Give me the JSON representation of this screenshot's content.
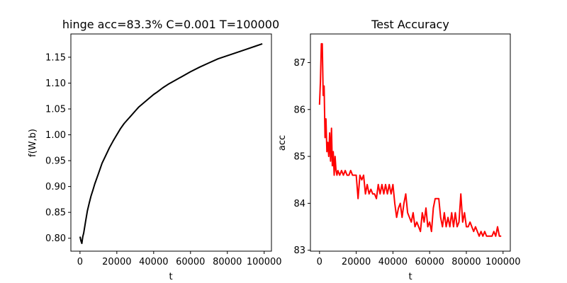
{
  "chart_data": [
    {
      "type": "line",
      "title": "hinge acc=83.3% C=0.001 T=100000",
      "xlabel": "t",
      "ylabel": "f(W,b)",
      "xlim": [
        -4950,
        103950
      ],
      "ylim": [
        0.775,
        1.195
      ],
      "xticks": [
        0,
        20000,
        40000,
        60000,
        80000,
        100000
      ],
      "xtick_labels": [
        "0",
        "20000",
        "40000",
        "60000",
        "80000",
        "100000"
      ],
      "yticks": [
        0.8,
        0.85,
        0.9,
        0.95,
        1.0,
        1.05,
        1.1,
        1.15
      ],
      "ytick_labels": [
        "0.80",
        "0.85",
        "0.90",
        "0.95",
        "1.00",
        "1.05",
        "1.10",
        "1.15"
      ],
      "grid": false,
      "series": [
        {
          "color": "#000000",
          "x": [
            0,
            500,
            1000,
            1500,
            2000,
            3000,
            4000,
            5000,
            6000,
            7000,
            8000,
            10000,
            12000,
            14000,
            16000,
            18000,
            20000,
            22000,
            24000,
            26000,
            28000,
            30000,
            32000,
            35000,
            38000,
            40000,
            42000,
            45000,
            48000,
            50000,
            55000,
            60000,
            65000,
            70000,
            75000,
            80000,
            85000,
            90000,
            95000,
            99000
          ],
          "y": [
            0.803,
            0.795,
            0.79,
            0.803,
            0.81,
            0.832,
            0.853,
            0.868,
            0.882,
            0.893,
            0.905,
            0.925,
            0.945,
            0.96,
            0.975,
            0.988,
            1.0,
            1.012,
            1.022,
            1.03,
            1.038,
            1.046,
            1.054,
            1.063,
            1.072,
            1.078,
            1.083,
            1.091,
            1.098,
            1.102,
            1.112,
            1.122,
            1.131,
            1.139,
            1.147,
            1.153,
            1.159,
            1.165,
            1.171,
            1.176
          ]
        }
      ]
    },
    {
      "type": "line",
      "title": "Test Accuracy",
      "xlabel": "t",
      "ylabel": "acc",
      "xlim": [
        -4950,
        103950
      ],
      "ylim": [
        82.98,
        87.61
      ],
      "xticks": [
        0,
        20000,
        40000,
        60000,
        80000,
        100000
      ],
      "xtick_labels": [
        "0",
        "20000",
        "40000",
        "60000",
        "80000",
        "100000"
      ],
      "yticks": [
        83,
        84,
        85,
        86,
        87
      ],
      "ytick_labels": [
        "83",
        "84",
        "85",
        "86",
        "87"
      ],
      "grid": false,
      "series": [
        {
          "color": "#ff0000",
          "x": [
            0,
            500,
            1000,
            1500,
            2000,
            2500,
            3000,
            3500,
            4000,
            4500,
            5000,
            5500,
            6000,
            6500,
            7000,
            7500,
            8000,
            8500,
            9000,
            9500,
            10000,
            11000,
            12000,
            13000,
            14000,
            15000,
            16000,
            17000,
            18000,
            19000,
            20000,
            21000,
            22000,
            23000,
            24000,
            25000,
            26000,
            27000,
            28000,
            29000,
            30000,
            31000,
            32000,
            33000,
            34000,
            35000,
            36000,
            37000,
            38000,
            39000,
            40000,
            41000,
            42000,
            43000,
            44000,
            45000,
            46000,
            47000,
            48000,
            49000,
            50000,
            51000,
            52000,
            53000,
            54000,
            55000,
            56000,
            57000,
            58000,
            59000,
            60000,
            61000,
            62000,
            63000,
            64000,
            65000,
            66000,
            67000,
            68000,
            69000,
            70000,
            71000,
            72000,
            73000,
            74000,
            75000,
            76000,
            77000,
            78000,
            79000,
            80000,
            81000,
            82000,
            83000,
            84000,
            85000,
            86000,
            87000,
            88000,
            89000,
            90000,
            91000,
            92000,
            93000,
            94000,
            95000,
            96000,
            97000,
            98000,
            99000
          ],
          "y": [
            86.1,
            86.6,
            87.4,
            87.4,
            86.3,
            86.5,
            85.4,
            85.8,
            85.1,
            85.3,
            85.0,
            85.5,
            84.9,
            85.6,
            84.8,
            85.1,
            84.6,
            85.0,
            84.7,
            84.6,
            84.7,
            84.6,
            84.7,
            84.6,
            84.7,
            84.6,
            84.6,
            84.7,
            84.6,
            84.6,
            84.6,
            84.1,
            84.6,
            84.5,
            84.6,
            84.2,
            84.4,
            84.2,
            84.3,
            84.2,
            84.2,
            84.1,
            84.4,
            84.2,
            84.4,
            84.2,
            84.4,
            84.2,
            84.4,
            84.2,
            84.4,
            84.0,
            83.7,
            83.9,
            84.0,
            83.7,
            84.0,
            84.2,
            83.8,
            83.7,
            83.6,
            83.8,
            83.5,
            83.6,
            83.5,
            83.4,
            83.8,
            83.6,
            83.9,
            83.5,
            83.6,
            83.4,
            83.9,
            84.1,
            84.1,
            84.1,
            83.7,
            83.5,
            83.8,
            83.5,
            83.7,
            83.5,
            83.8,
            83.5,
            83.8,
            83.5,
            83.6,
            84.2,
            83.6,
            83.8,
            83.5,
            83.5,
            83.6,
            83.5,
            83.4,
            83.5,
            83.4,
            83.3,
            83.4,
            83.3,
            83.4,
            83.3,
            83.3,
            83.3,
            83.3,
            83.4,
            83.3,
            83.5,
            83.3,
            83.3
          ]
        }
      ]
    }
  ]
}
